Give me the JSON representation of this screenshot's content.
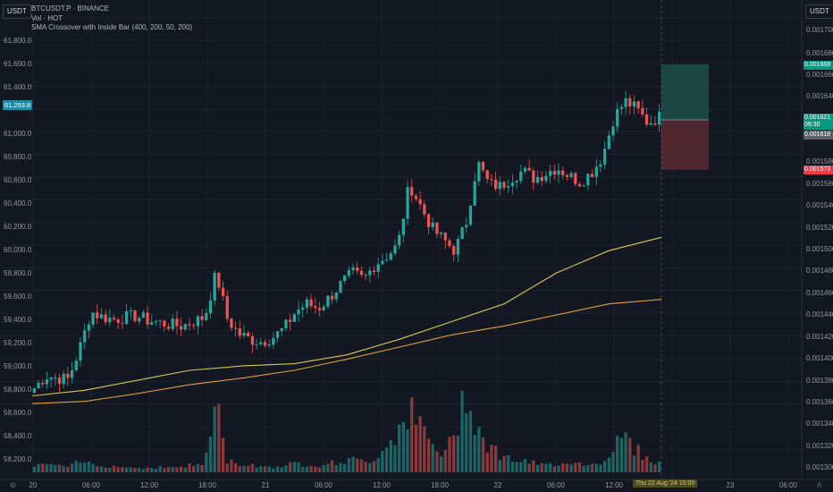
{
  "currency_button_left": "USDT",
  "currency_button_right": "USDT",
  "legend": {
    "symbol": "BTCUSDT.P · BINANCE",
    "volume": "Vol · HOT",
    "indicator": "SMA Crossover with Inside Bar (400, 200, 50, 200)"
  },
  "left_axis": [
    "61,800.0",
    "61,600.0",
    "61,400.0",
    "61,000.0",
    "60,800.0",
    "60,600.0",
    "60,400.0",
    "60,200.0",
    "60,000.0",
    "59,800.0",
    "59,600.0",
    "59,400.0",
    "59,200.0",
    "59,000.0",
    "58,800.0",
    "58,600.0",
    "58,400.0",
    "58,200.0"
  ],
  "left_current_tag": "61,253.8",
  "right_axis": [
    "0.001700",
    "0.001680",
    "0.001660",
    "0.001640",
    "0.001580",
    "0.001560",
    "0.001540",
    "0.001520",
    "0.001500",
    "0.001480",
    "0.001460",
    "0.001440",
    "0.001420",
    "0.001400",
    "0.001380",
    "0.001360",
    "0.001340",
    "0.001320",
    "0.001300"
  ],
  "price_tags": {
    "take_profit": "0.001668",
    "current": "0.001621",
    "countdown": "09:30",
    "entry": "0.001618",
    "stop_loss": "0.001573"
  },
  "time_axis": [
    "20",
    "06:00",
    "12:00",
    "18:00",
    "21",
    "06:00",
    "12:00",
    "18:00",
    "22",
    "06:00",
    "12:00",
    "23",
    "06:00"
  ],
  "crosshair_time": "Thu 22 Aug '24 15:00",
  "icons": {
    "left": "settings-icon",
    "right": "auto-scale-icon"
  },
  "colors": {
    "background": "#131722",
    "up": "#26a69a",
    "down": "#ef5350",
    "sma_fast": "#d7c94a",
    "sma_slow": "#e0a030",
    "take_profit_zone": "#1d4d47",
    "stop_loss_zone": "#5a2a33"
  },
  "chart_data": {
    "type": "candlestick",
    "x_ticks": [
      "20",
      "06:00",
      "12:00",
      "18:00",
      "21",
      "06:00",
      "12:00",
      "18:00",
      "22",
      "06:00",
      "12:00",
      "23",
      "06:00"
    ],
    "y_ticks_left": [
      "61,800.0",
      "61,600.0",
      "61,400.0",
      "61,000.0",
      "60,800.0",
      "60,600.0",
      "60,400.0",
      "60,200.0",
      "60,000.0",
      "59,800.0",
      "59,600.0",
      "59,400.0",
      "59,200.0",
      "59,000.0",
      "58,800.0",
      "58,600.0",
      "58,400.0",
      "58,200.0"
    ],
    "y_ticks_right": [
      "0.001700",
      "0.001680",
      "0.001660",
      "0.001640",
      "0.001580",
      "0.001560",
      "0.001540",
      "0.001520",
      "0.001500",
      "0.001480",
      "0.001460",
      "0.001440",
      "0.001420",
      "0.001400",
      "0.001380",
      "0.001360",
      "0.001340",
      "0.001320",
      "0.001300"
    ],
    "ylim_right": [
      0.0013,
      0.00171
    ],
    "close_series_right_axis": [
      0.001376,
      0.001387,
      0.001385,
      0.001384,
      0.001412,
      0.001445,
      0.00144,
      0.001438,
      0.00144,
      0.001441,
      0.001437,
      0.001435,
      0.001433,
      0.001432,
      0.001436,
      0.00144,
      0.00148,
      0.001438,
      0.001425,
      0.00142,
      0.001418,
      0.001422,
      0.00143,
      0.001445,
      0.001452,
      0.001448,
      0.001458,
      0.00147,
      0.00148,
      0.001474,
      0.001488,
      0.001495,
      0.001505,
      0.00156,
      0.00154,
      0.00152,
      0.00151,
      0.0015,
      0.001525,
      0.00158,
      0.00156,
      0.001558,
      0.001566,
      0.001572,
      0.001565,
      0.00157,
      0.001575,
      0.001568,
      0.001562,
      0.00157,
      0.001585,
      0.00162,
      0.001635,
      0.001628,
      0.001615,
      0.001621
    ],
    "sma_fast_right_axis": [
      0.001369,
      0.001374,
      0.001383,
      0.001392,
      0.001396,
      0.001398,
      0.001406,
      0.00142,
      0.001436,
      0.001452,
      0.00148,
      0.0015,
      0.001512
    ],
    "sma_slow_right_axis": [
      0.001362,
      0.001364,
      0.001371,
      0.001379,
      0.001385,
      0.001392,
      0.001402,
      0.001413,
      0.001424,
      0.001432,
      0.001442,
      0.001452,
      0.001456
    ],
    "volume_relative": [
      0.08,
      0.1,
      0.07,
      0.06,
      0.12,
      0.1,
      0.08,
      0.07,
      0.06,
      0.05,
      0.05,
      0.06,
      0.05,
      0.07,
      0.08,
      0.1,
      0.8,
      0.12,
      0.1,
      0.08,
      0.07,
      0.06,
      0.08,
      0.1,
      0.09,
      0.08,
      0.1,
      0.12,
      0.14,
      0.12,
      0.16,
      0.3,
      0.5,
      0.7,
      0.5,
      0.3,
      0.2,
      0.4,
      1.0,
      0.5,
      0.3,
      0.2,
      0.15,
      0.12,
      0.1,
      0.08,
      0.1,
      0.12,
      0.1,
      0.09,
      0.12,
      0.3,
      0.4,
      0.25,
      0.15,
      0.1
    ],
    "long_position": {
      "take_profit": 0.001668,
      "entry": 0.001618,
      "stop_loss": 0.001573
    },
    "grid": true
  }
}
